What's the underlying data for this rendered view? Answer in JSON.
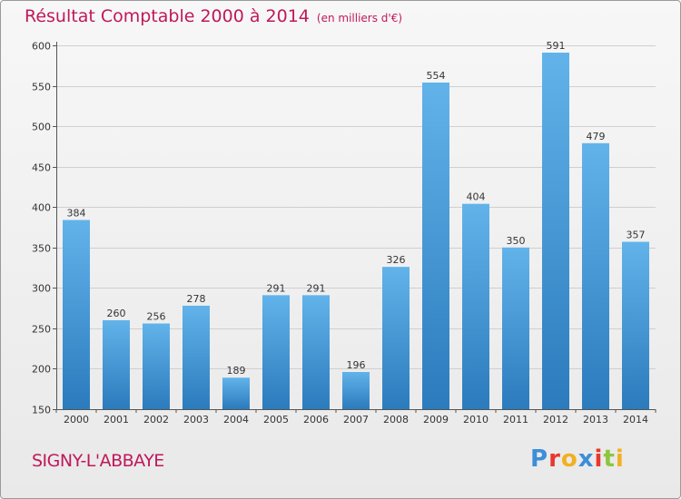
{
  "chart_data": {
    "type": "bar",
    "title": "Résultat Comptable 2000 à 2014",
    "subtitle": "(en milliers d'€)",
    "categories": [
      "2000",
      "2001",
      "2002",
      "2003",
      "2004",
      "2005",
      "2006",
      "2007",
      "2008",
      "2009",
      "2010",
      "2011",
      "2012",
      "2013",
      "2014"
    ],
    "values": [
      384,
      260,
      256,
      278,
      189,
      291,
      291,
      196,
      326,
      554,
      404,
      350,
      591,
      479,
      357
    ],
    "yticks": [
      150,
      200,
      250,
      300,
      350,
      400,
      450,
      500,
      550,
      600
    ],
    "ylim": [
      150,
      600
    ],
    "grid": true,
    "xlabel": "",
    "ylabel": "",
    "bar_color_top": "#62b3ea",
    "bar_color_bottom": "#2b7bbd"
  },
  "location": "SIGNY-L'ABBAYE",
  "logo": {
    "letters": [
      "P",
      "r",
      "o",
      "x",
      "i",
      "t",
      "i"
    ],
    "colors": [
      "#3c8ed8",
      "#e6392f",
      "#f2b021",
      "#3c8ed8",
      "#e6392f",
      "#8cc63f",
      "#f2b021"
    ]
  }
}
